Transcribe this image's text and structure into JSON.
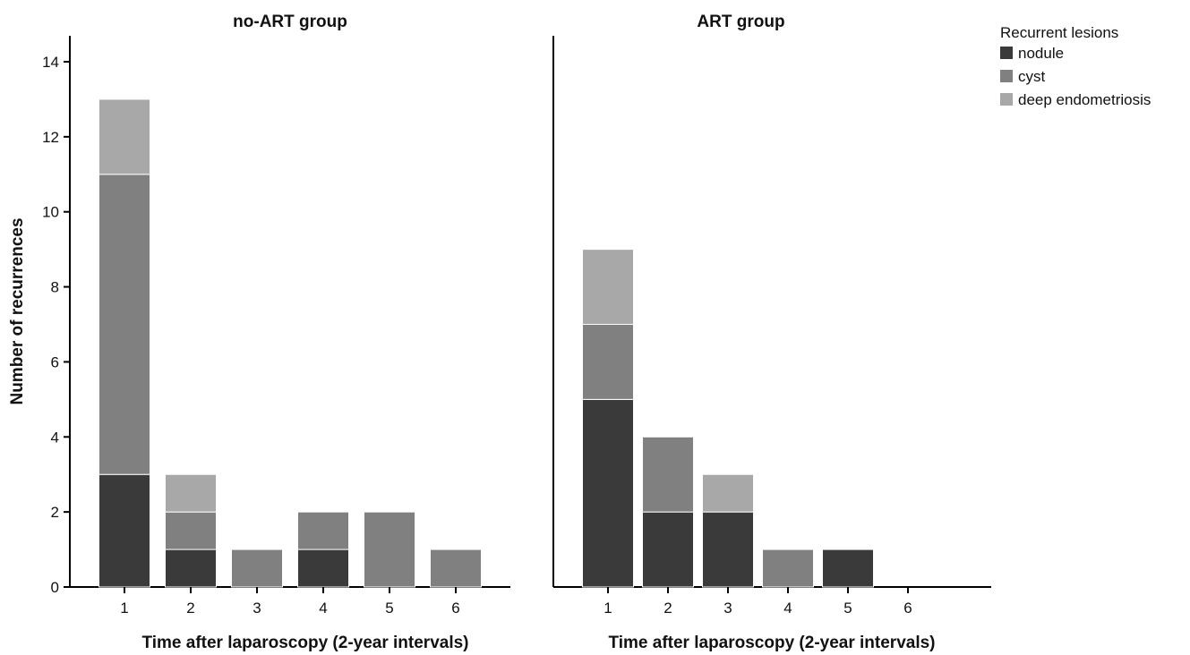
{
  "chart_data": {
    "type": "bar",
    "stacked": true,
    "ylabel": "Number of recurrences",
    "ylim": [
      0,
      14
    ],
    "yticks": [
      "0",
      "2",
      "4",
      "6",
      "8",
      "10",
      "12",
      "14"
    ],
    "grid": false,
    "legend": {
      "title": "Recurrent lesions",
      "placement": "top-right",
      "entries": [
        {
          "label": "nodule",
          "color": "#3a3a3a"
        },
        {
          "label": "cyst",
          "color": "#808080"
        },
        {
          "label": "deep endometriosis",
          "color": "#a8a8a8"
        }
      ]
    },
    "panels": [
      {
        "title": "no-ART group",
        "xlabel": "Time after laparoscopy (2-year intervals)",
        "categories": [
          "1",
          "2",
          "3",
          "4",
          "5",
          "6"
        ],
        "series": [
          {
            "name": "nodule",
            "values": [
              3,
              1,
              0,
              1,
              0,
              0
            ]
          },
          {
            "name": "cyst",
            "values": [
              8,
              1,
              1,
              1,
              2,
              1
            ]
          },
          {
            "name": "deep endometriosis",
            "values": [
              2,
              1,
              0,
              0,
              0,
              0
            ]
          }
        ]
      },
      {
        "title": "ART group",
        "xlabel": "Time after laparoscopy (2-year intervals)",
        "categories": [
          "1",
          "2",
          "3",
          "4",
          "5",
          "6"
        ],
        "series": [
          {
            "name": "nodule",
            "values": [
              5,
              2,
              2,
              0,
              1,
              0
            ]
          },
          {
            "name": "cyst",
            "values": [
              2,
              2,
              0,
              1,
              0,
              0
            ]
          },
          {
            "name": "deep endometriosis",
            "values": [
              2,
              0,
              1,
              0,
              0,
              0
            ]
          }
        ]
      }
    ]
  }
}
